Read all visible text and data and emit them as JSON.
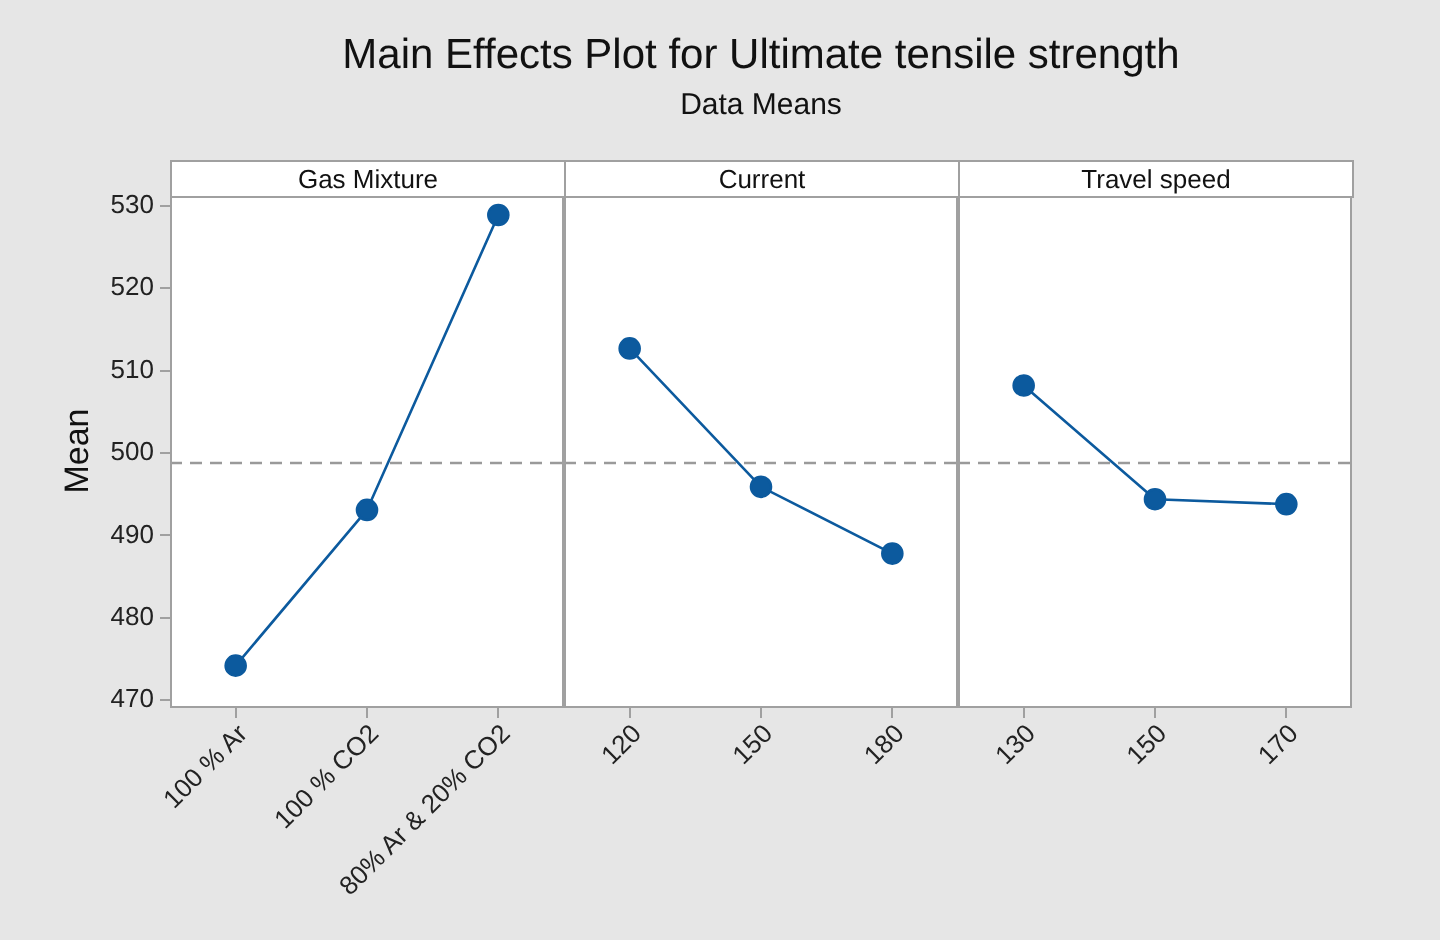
{
  "chart_data": [
    {
      "type": "line",
      "xlabel": "Gas Mixture",
      "ylabel": "Mean",
      "categories": [
        "100 % Ar",
        "100 % CO2",
        "80% Ar & 20% CO2"
      ],
      "series": [
        {
          "color": "#0c5a9e",
          "values": [
            474.2,
            493.1,
            528.9
          ]
        }
      ],
      "ylim": [
        469.3,
        531.2
      ],
      "yticks": [
        470,
        480,
        490,
        500,
        510,
        520,
        530
      ],
      "marker": "circle",
      "ref_lines": [
        {
          "axis": "y",
          "value": 498.8,
          "color": "#9a9a9a",
          "line_style": "dashed"
        }
      ]
    },
    {
      "type": "line",
      "title": "Main Effects Plot for Ultimate tensile strength",
      "subtitle": "Data Means",
      "xlabel": "Current",
      "categories": [
        "120",
        "150",
        "180"
      ],
      "series": [
        {
          "color": "#0c5a9e",
          "values": [
            512.7,
            495.9,
            487.8
          ]
        }
      ],
      "ylim": [
        469.3,
        531.2
      ],
      "tick_labels": "x",
      "marker": "circle",
      "ref_lines": [
        {
          "axis": "y",
          "value": 498.8,
          "color": "#9a9a9a",
          "line_style": "dashed"
        }
      ]
    },
    {
      "type": "line",
      "xlabel": "Travel speed",
      "categories": [
        "130",
        "150",
        "170"
      ],
      "series": [
        {
          "color": "#0c5a9e",
          "values": [
            508.2,
            494.4,
            493.8
          ]
        }
      ],
      "ylim": [
        469.3,
        531.2
      ],
      "tick_labels": "x",
      "marker": "circle",
      "ref_lines": [
        {
          "axis": "y",
          "value": 498.8,
          "color": "#9a9a9a",
          "line_style": "dashed"
        }
      ]
    }
  ]
}
